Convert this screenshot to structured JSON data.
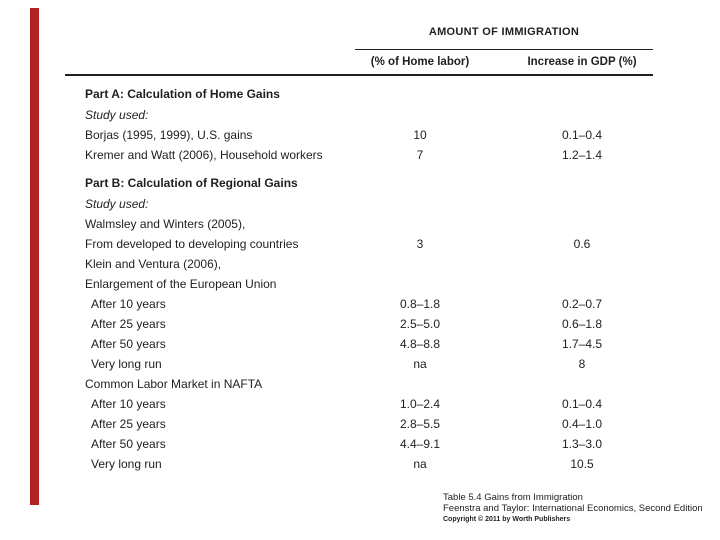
{
  "accent": {
    "red_bar_color": "#B22222"
  },
  "table": {
    "spanner": "AMOUNT OF IMMIGRATION",
    "col2_header": "(% of Home labor)",
    "col3_header": "Increase in GDP (%)",
    "rows": [
      {
        "type": "part",
        "label": "Part A: Calculation of Home Gains",
        "c2": "",
        "c3": ""
      },
      {
        "type": "study",
        "label": "Study used:",
        "c2": "",
        "c3": ""
      },
      {
        "type": "data",
        "label": "Borjas (1995, 1999), U.S. gains",
        "c2": "10",
        "c3": "0.1–0.4"
      },
      {
        "type": "data",
        "label": "Kremer and Watt (2006), Household workers",
        "c2": "7",
        "c3": "1.2–1.4"
      },
      {
        "type": "part",
        "label": "Part B: Calculation of Regional Gains",
        "c2": "",
        "c3": ""
      },
      {
        "type": "study",
        "label": "Study used:",
        "c2": "",
        "c3": ""
      },
      {
        "type": "data",
        "label": "Walmsley and Winters (2005),",
        "c2": "",
        "c3": ""
      },
      {
        "type": "data",
        "label": "From developed to developing countries",
        "c2": "3",
        "c3": "0.6"
      },
      {
        "type": "data",
        "label": "Klein and Ventura (2006),",
        "c2": "",
        "c3": ""
      },
      {
        "type": "data",
        "label": "Enlargement of the European Union",
        "c2": "",
        "c3": ""
      },
      {
        "type": "indent",
        "label": "After 10 years",
        "c2": "0.8–1.8",
        "c3": "0.2–0.7"
      },
      {
        "type": "indent",
        "label": "After 25 years",
        "c2": "2.5–5.0",
        "c3": "0.6–1.8"
      },
      {
        "type": "indent",
        "label": "After 50 years",
        "c2": "4.8–8.8",
        "c3": "1.7–4.5"
      },
      {
        "type": "indent",
        "label": "Very long run",
        "c2": "na",
        "c3": "8"
      },
      {
        "type": "data",
        "label": "Common Labor Market in NAFTA",
        "c2": "",
        "c3": ""
      },
      {
        "type": "indent",
        "label": "After 10 years",
        "c2": "1.0–2.4",
        "c3": "0.1–0.4"
      },
      {
        "type": "indent",
        "label": "After 25 years",
        "c2": "2.8–5.5",
        "c3": "0.4–1.0"
      },
      {
        "type": "indent",
        "label": "After 50 years",
        "c2": "4.4–9.1",
        "c3": "1.3–3.0"
      },
      {
        "type": "indent",
        "label": "Very long run",
        "c2": "na",
        "c3": "10.5"
      }
    ]
  },
  "footer": {
    "line1": "Table 5.4  Gains from Immigration",
    "line2": "Feenstra and Taylor: International Economics, Second Edition",
    "line3": "Copyright © 2011 by Worth Publishers"
  }
}
